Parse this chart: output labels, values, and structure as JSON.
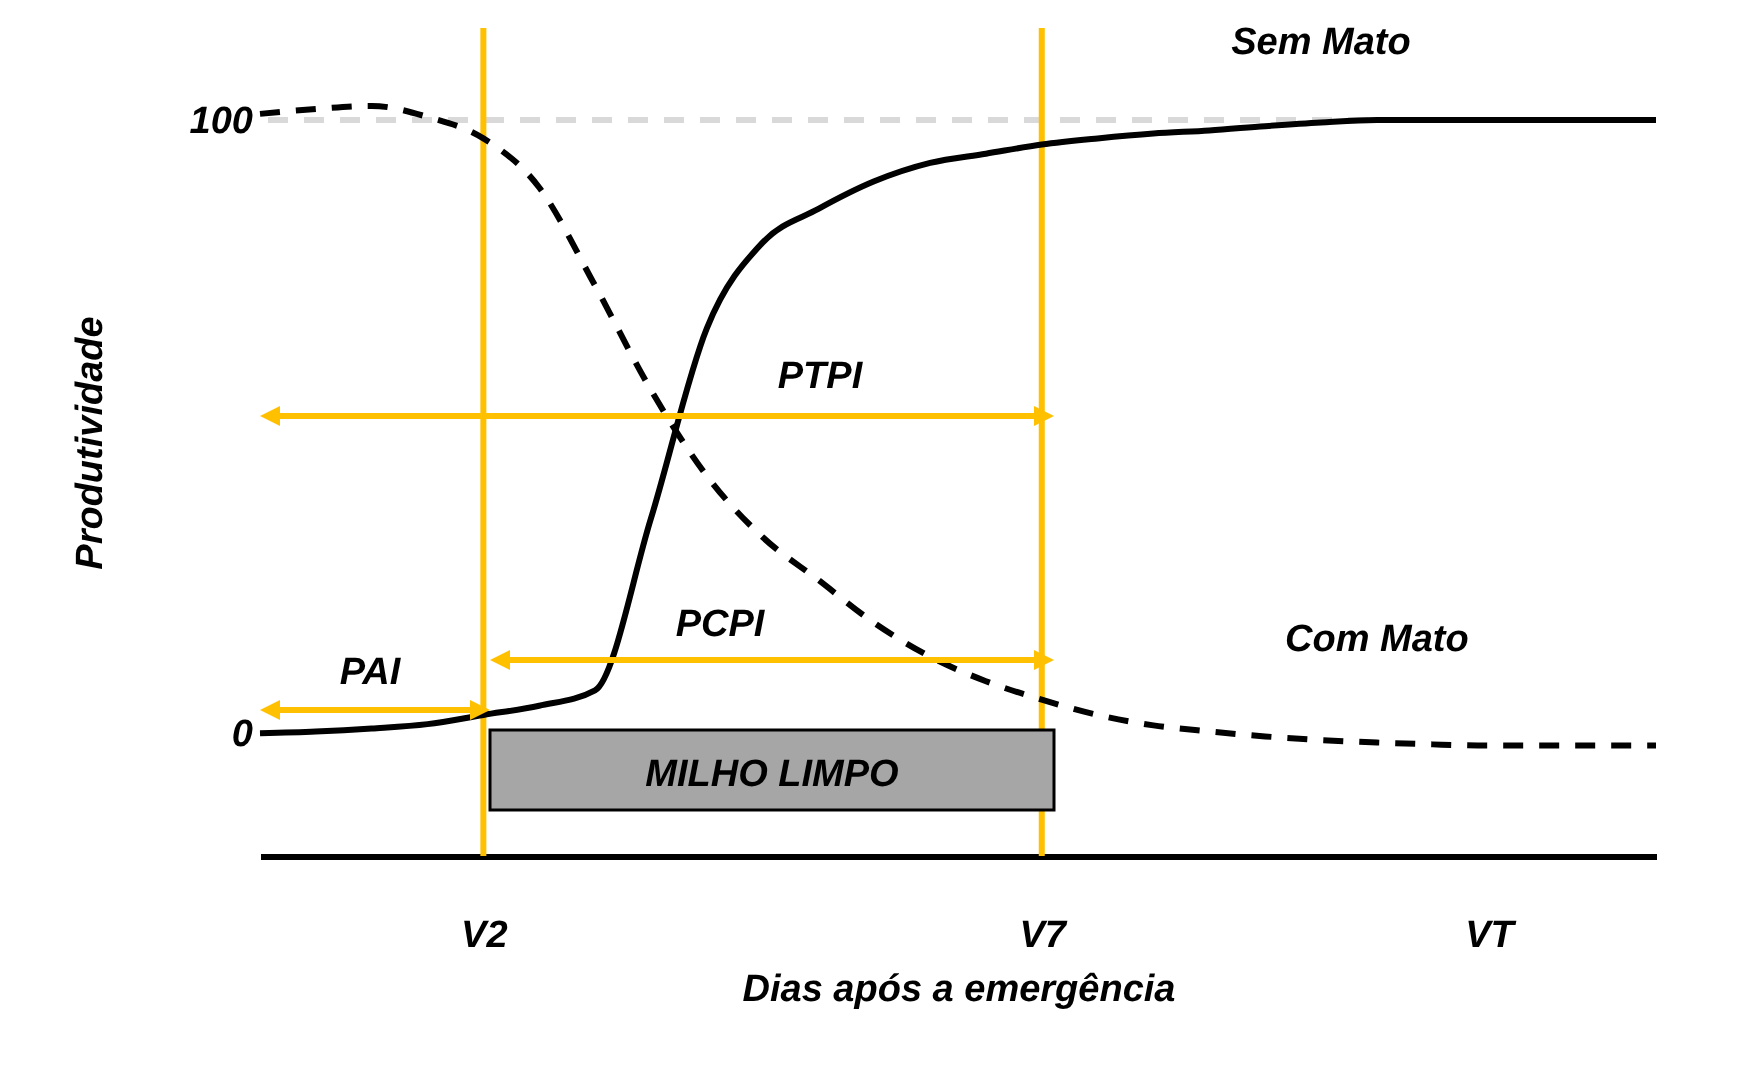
{
  "chart_data": {
    "type": "line",
    "xlabel": "Dias após a emergência",
    "ylabel": "Produtividade",
    "categories": [
      null,
      null,
      null,
      null,
      "V2",
      null,
      null,
      null,
      null,
      null,
      null,
      null,
      null,
      null,
      "V7",
      null,
      null,
      null,
      null,
      null,
      null,
      null,
      "VT",
      null,
      null,
      null
    ],
    "ylim": [
      -20,
      115
    ],
    "yticks": [
      0,
      100
    ],
    "series": [
      {
        "name": "Sem Mato",
        "color": "#000000",
        "line_style": "solid",
        "values": [
          0,
          0.3,
          0.8,
          1.5,
          3,
          4.5,
          7,
          35,
          66,
          80,
          85.5,
          90,
          93,
          94.5,
          96,
          97,
          97.8,
          98.3,
          99,
          99.6,
          100,
          100,
          100,
          100,
          100,
          100
        ]
      },
      {
        "name": "Com Mato",
        "color": "#000000",
        "line_style": "dashed",
        "values": [
          101,
          101.8,
          102.3,
          100.5,
          97,
          89,
          73,
          56,
          42,
          32,
          25,
          18,
          12.5,
          8.5,
          5.5,
          3,
          1.3,
          0.3,
          -0.5,
          -1.1,
          -1.5,
          -1.8,
          -2,
          -2,
          -2,
          -2
        ]
      }
    ],
    "ref_lines": [
      {
        "axis": "y",
        "value": 100,
        "color": "#d9d9d9",
        "line_style": "dashed"
      },
      {
        "axis": "x",
        "value": "V2",
        "color": "#ffc000",
        "line_style": "solid"
      },
      {
        "axis": "x",
        "value": "V7",
        "color": "#ffc000",
        "line_style": "solid"
      }
    ],
    "annotations": [
      "PTPI",
      "PCPI",
      "PAI",
      "MILHO LIMPO"
    ]
  }
}
